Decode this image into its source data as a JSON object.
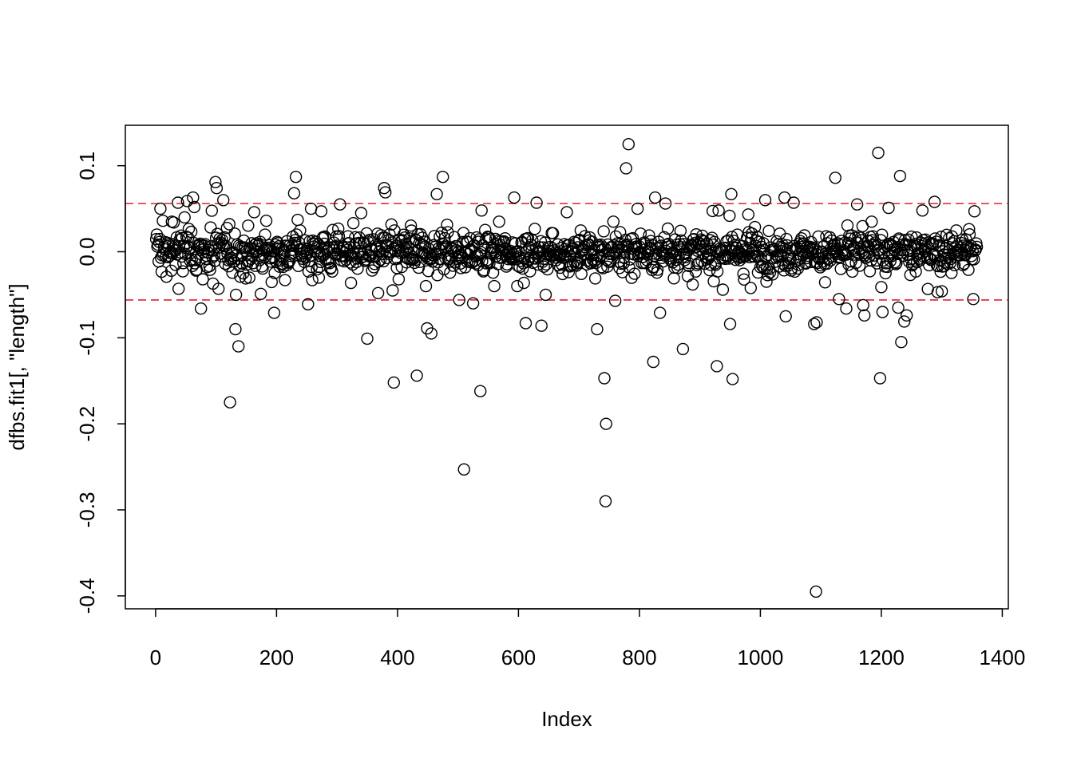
{
  "chart_data": {
    "type": "scatter",
    "title": "",
    "xlabel": "Index",
    "ylabel": "dfbs.fit1[, \"length\"]",
    "xlim": [
      -50,
      1410
    ],
    "ylim": [
      -0.415,
      0.147
    ],
    "xticks": [
      0,
      200,
      400,
      600,
      800,
      1000,
      1200,
      1400
    ],
    "xtick_labels": [
      "0",
      "200",
      "400",
      "600",
      "800",
      "1000",
      "1200",
      "1400"
    ],
    "yticks": [
      0.1,
      0.0,
      -0.1,
      -0.2,
      -0.3,
      -0.4
    ],
    "ytick_labels": [
      "0.1",
      "0.0",
      "-0.1",
      "-0.2",
      "-0.3",
      "-0.4"
    ],
    "grid": false,
    "marker": "open-circle",
    "point_color": "#000000",
    "reference_lines": [
      {
        "orientation": "horizontal",
        "y": 0.056,
        "color": "#e0202a",
        "style": "dashed"
      },
      {
        "orientation": "horizontal",
        "y": -0.056,
        "color": "#e0202a",
        "style": "dashed"
      }
    ],
    "n_points": 1358,
    "notable_points": [
      {
        "x": 8,
        "y": 0.05
      },
      {
        "x": 12,
        "y": 0.036
      },
      {
        "x": 18,
        "y": -0.029
      },
      {
        "x": 27,
        "y": 0.035
      },
      {
        "x": 30,
        "y": 0.034
      },
      {
        "x": 38,
        "y": -0.043
      },
      {
        "x": 37,
        "y": 0.057
      },
      {
        "x": 48,
        "y": 0.04
      },
      {
        "x": 52,
        "y": 0.059
      },
      {
        "x": 62,
        "y": 0.063
      },
      {
        "x": 64,
        "y": 0.052
      },
      {
        "x": 67,
        "y": -0.022
      },
      {
        "x": 75,
        "y": -0.066
      },
      {
        "x": 78,
        "y": -0.032
      },
      {
        "x": 90,
        "y": -0.021
      },
      {
        "x": 95,
        "y": -0.037
      },
      {
        "x": 99,
        "y": 0.081
      },
      {
        "x": 101,
        "y": 0.074
      },
      {
        "x": 104,
        "y": -0.043
      },
      {
        "x": 112,
        "y": 0.06
      },
      {
        "x": 122,
        "y": 0.032
      },
      {
        "x": 123,
        "y": -0.175
      },
      {
        "x": 132,
        "y": -0.09
      },
      {
        "x": 137,
        "y": -0.11
      },
      {
        "x": 140,
        "y": -0.029
      },
      {
        "x": 145,
        "y": -0.025
      },
      {
        "x": 155,
        "y": -0.03
      },
      {
        "x": 163,
        "y": 0.046
      },
      {
        "x": 174,
        "y": -0.049
      },
      {
        "x": 183,
        "y": 0.036
      },
      {
        "x": 196,
        "y": -0.071
      },
      {
        "x": 214,
        "y": -0.033
      },
      {
        "x": 229,
        "y": 0.068
      },
      {
        "x": 232,
        "y": 0.087
      },
      {
        "x": 235,
        "y": 0.037
      },
      {
        "x": 252,
        "y": -0.061
      },
      {
        "x": 257,
        "y": 0.05
      },
      {
        "x": 270,
        "y": -0.03
      },
      {
        "x": 274,
        "y": 0.047
      },
      {
        "x": 292,
        "y": -0.023
      },
      {
        "x": 305,
        "y": 0.055
      },
      {
        "x": 340,
        "y": 0.045
      },
      {
        "x": 350,
        "y": -0.101
      },
      {
        "x": 368,
        "y": -0.048
      },
      {
        "x": 378,
        "y": 0.074
      },
      {
        "x": 380,
        "y": 0.069
      },
      {
        "x": 392,
        "y": -0.045
      },
      {
        "x": 394,
        "y": -0.152
      },
      {
        "x": 402,
        "y": -0.032
      },
      {
        "x": 432,
        "y": -0.144
      },
      {
        "x": 447,
        "y": -0.04
      },
      {
        "x": 449,
        "y": -0.089
      },
      {
        "x": 456,
        "y": -0.095
      },
      {
        "x": 465,
        "y": 0.067
      },
      {
        "x": 475,
        "y": 0.087
      },
      {
        "x": 502,
        "y": -0.056
      },
      {
        "x": 510,
        "y": -0.253
      },
      {
        "x": 525,
        "y": -0.06
      },
      {
        "x": 537,
        "y": -0.162
      },
      {
        "x": 560,
        "y": -0.04
      },
      {
        "x": 568,
        "y": 0.035
      },
      {
        "x": 593,
        "y": 0.063
      },
      {
        "x": 598,
        "y": -0.04
      },
      {
        "x": 612,
        "y": -0.083
      },
      {
        "x": 630,
        "y": 0.057
      },
      {
        "x": 638,
        "y": -0.086
      },
      {
        "x": 645,
        "y": -0.05
      },
      {
        "x": 680,
        "y": 0.046
      },
      {
        "x": 727,
        "y": -0.031
      },
      {
        "x": 730,
        "y": -0.09
      },
      {
        "x": 742,
        "y": -0.147
      },
      {
        "x": 744,
        "y": -0.29
      },
      {
        "x": 745,
        "y": -0.2
      },
      {
        "x": 760,
        "y": -0.057
      },
      {
        "x": 778,
        "y": 0.097
      },
      {
        "x": 782,
        "y": 0.125
      },
      {
        "x": 797,
        "y": 0.05
      },
      {
        "x": 823,
        "y": -0.128
      },
      {
        "x": 826,
        "y": 0.063
      },
      {
        "x": 834,
        "y": -0.071
      },
      {
        "x": 843,
        "y": 0.056
      },
      {
        "x": 872,
        "y": -0.113
      },
      {
        "x": 888,
        "y": -0.038
      },
      {
        "x": 928,
        "y": -0.133
      },
      {
        "x": 938,
        "y": -0.044
      },
      {
        "x": 950,
        "y": -0.084
      },
      {
        "x": 952,
        "y": 0.067
      },
      {
        "x": 954,
        "y": -0.148
      },
      {
        "x": 1008,
        "y": 0.06
      },
      {
        "x": 1042,
        "y": -0.075
      },
      {
        "x": 1040,
        "y": 0.063
      },
      {
        "x": 1055,
        "y": 0.057
      },
      {
        "x": 1089,
        "y": -0.084
      },
      {
        "x": 1093,
        "y": -0.082
      },
      {
        "x": 1092,
        "y": -0.395
      },
      {
        "x": 1124,
        "y": 0.086
      },
      {
        "x": 1130,
        "y": -0.055
      },
      {
        "x": 1142,
        "y": -0.066
      },
      {
        "x": 1160,
        "y": 0.055
      },
      {
        "x": 1170,
        "y": -0.062
      },
      {
        "x": 1172,
        "y": -0.074
      },
      {
        "x": 1195,
        "y": 0.115
      },
      {
        "x": 1198,
        "y": -0.147
      },
      {
        "x": 1202,
        "y": -0.07
      },
      {
        "x": 1212,
        "y": 0.051
      },
      {
        "x": 1228,
        "y": -0.065
      },
      {
        "x": 1231,
        "y": 0.088
      },
      {
        "x": 1233,
        "y": -0.105
      },
      {
        "x": 1238,
        "y": -0.081
      },
      {
        "x": 1242,
        "y": -0.074
      },
      {
        "x": 1268,
        "y": 0.048
      },
      {
        "x": 1288,
        "y": 0.058
      },
      {
        "x": 1293,
        "y": -0.047
      },
      {
        "x": 1300,
        "y": -0.046
      },
      {
        "x": 1352,
        "y": -0.055
      },
      {
        "x": 1354,
        "y": 0.047
      }
    ]
  }
}
